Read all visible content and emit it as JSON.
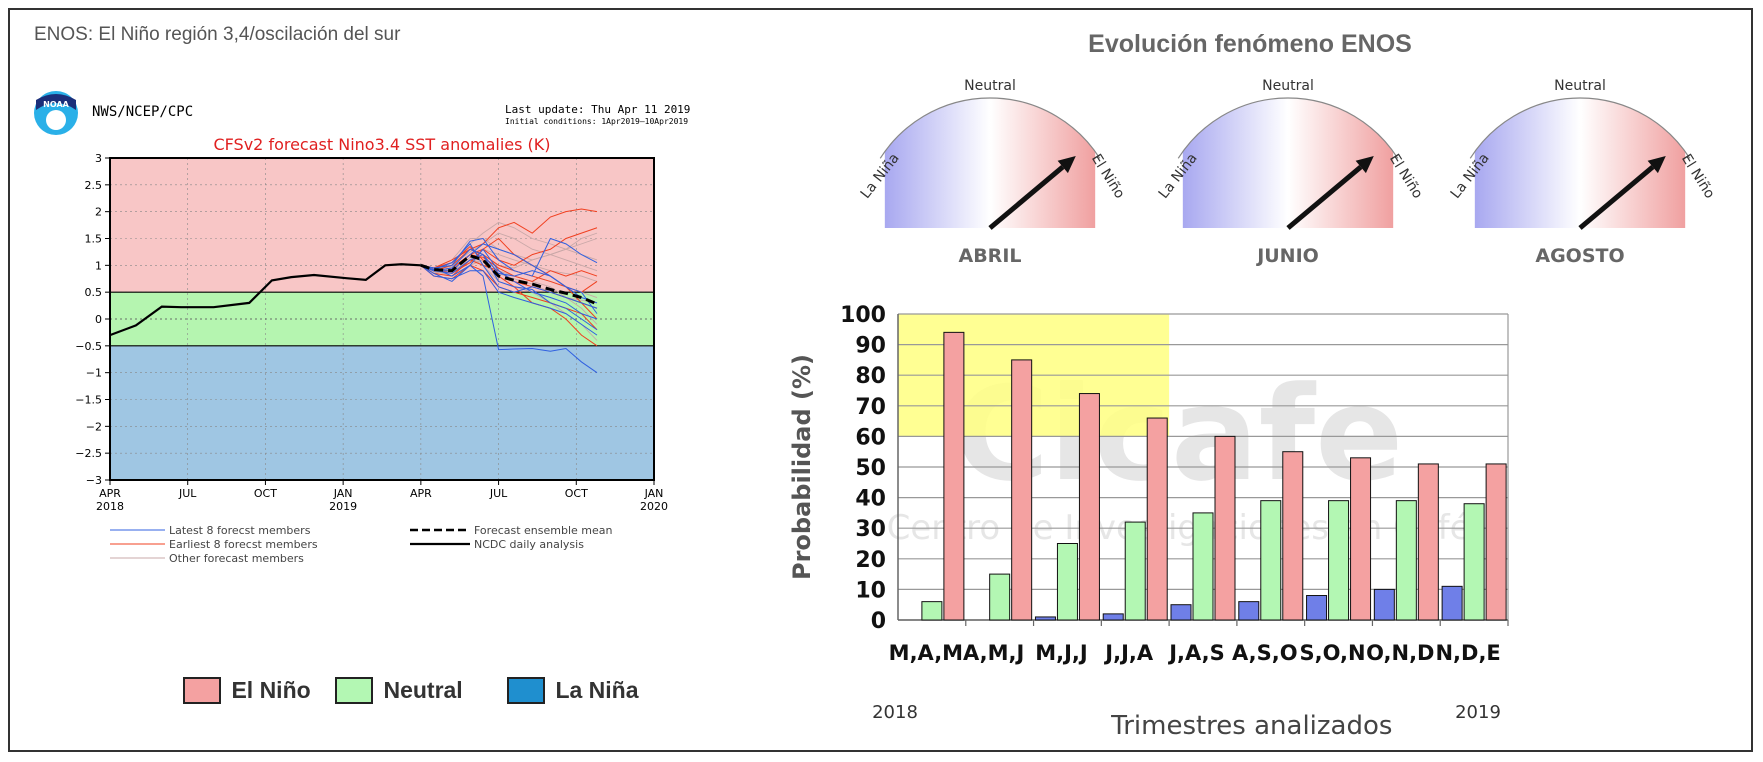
{
  "page": {
    "title": "ENOS: El Niño región 3,4/oscilación del sur"
  },
  "colors": {
    "el_nino": "#f4a1a1",
    "neutral": "#b3f7b3",
    "la_nina": "#1f8fcf",
    "el_nino_zone": "#f8c6c6",
    "neutral_zone": "#b5f5b0",
    "la_nina_zone": "#9fc6e3",
    "highlight": "#ffff80",
    "blue_bar": "#6f7fe8",
    "forecast_title": "#e02020"
  },
  "left_panel": {
    "org_label": "NWS/NCEP/CPC",
    "logo_text": "NOAA",
    "last_update": "Last update: Thu Apr 11 2019",
    "initial_conditions": "Initial conditions: 1Apr2019–10Apr2019",
    "legend_items": [
      {
        "label": "Latest 8 forecst members",
        "style": "blue"
      },
      {
        "label": "Earliest 8 forecst members",
        "style": "red"
      },
      {
        "label": "Other forecast members",
        "style": "gray"
      },
      {
        "label": "Forecast ensemble mean",
        "style": "dashed"
      },
      {
        "label": "NCDC daily analysis",
        "style": "solid"
      }
    ],
    "key_items": [
      {
        "label": "El Niño",
        "color": "#f4a1a1"
      },
      {
        "label": "Neutral",
        "color": "#b3f7b3"
      },
      {
        "label": "La Niña",
        "color": "#1f8fcf"
      }
    ]
  },
  "right_panel": {
    "title": "Evolución fenómeno ENOS",
    "gauges": [
      {
        "month": "ABRIL",
        "labels": {
          "left": "La Niña",
          "top": "Neutral",
          "right": "El Niño"
        },
        "needle_angle_deg": 40
      },
      {
        "month": "JUNIO",
        "labels": {
          "left": "La Niña",
          "top": "Neutral",
          "right": "El Niño"
        },
        "needle_angle_deg": 40
      },
      {
        "month": "AGOSTO",
        "labels": {
          "left": "La Niña",
          "top": "Neutral",
          "right": "El Niño"
        },
        "needle_angle_deg": 40
      }
    ],
    "watermark": {
      "logo": "Cicafe",
      "subtitle": "Centro de Investigaciones en Café"
    },
    "year_start": "2018",
    "year_end": "2019"
  },
  "chart_data": [
    {
      "type": "line",
      "title": "CFSv2 forecast Nino3.4 SST anomalies (K)",
      "xlabel": "",
      "ylabel": "",
      "ylim": [
        -3,
        3
      ],
      "y_ticks": [
        "3",
        "2.5",
        "2",
        "1.5",
        "1",
        "0.5",
        "0",
        "−0.5",
        "−1",
        "−1.5",
        "−2",
        "−2.5",
        "−3"
      ],
      "x_ticks": [
        {
          "label": "APR",
          "sub": "2018"
        },
        {
          "label": "JUL",
          "sub": ""
        },
        {
          "label": "OCT",
          "sub": ""
        },
        {
          "label": "JAN",
          "sub": "2019"
        },
        {
          "label": "APR",
          "sub": ""
        },
        {
          "label": "JUL",
          "sub": ""
        },
        {
          "label": "OCT",
          "sub": ""
        },
        {
          "label": "JAN",
          "sub": "2020"
        }
      ],
      "zones": [
        {
          "name": "El Niño",
          "from": 0.5,
          "to": 3
        },
        {
          "name": "Neutral",
          "from": -0.5,
          "to": 0.5
        },
        {
          "name": "La Niña",
          "from": -3,
          "to": -0.5
        }
      ],
      "grid": true,
      "series": [
        {
          "name": "NCDC daily analysis",
          "style": "solid",
          "x": [
            0,
            0.8,
            1.6,
            2.2,
            3.2,
            4.3,
            5.0,
            5.6,
            6.3,
            7.3,
            7.9,
            8.5,
            9.0,
            9.6
          ],
          "y": [
            -0.3,
            -0.12,
            0.23,
            0.22,
            0.22,
            0.3,
            0.72,
            0.78,
            0.82,
            0.76,
            0.73,
            1.0,
            1.02,
            1.0
          ]
        },
        {
          "name": "Forecast ensemble mean",
          "style": "dashed",
          "x": [
            9.0,
            9.6,
            10.3,
            11.0,
            11.5,
            12.0,
            12.6,
            13.3,
            14.0,
            14.6,
            15.2,
            15.8
          ],
          "y": [
            1.0,
            0.92,
            0.9,
            1.18,
            1.1,
            0.8,
            0.72,
            0.65,
            0.55,
            0.48,
            0.4,
            0.28
          ]
        },
        {
          "name": "Latest 8 forecst members",
          "style": "blue",
          "members": [
            [
              1.0,
              0.9,
              0.9,
              1.2,
              1.4,
              1.3,
              1.2,
              1.0,
              0.8,
              0.6,
              0.5,
              0.1
            ],
            [
              1.0,
              0.95,
              1.0,
              1.45,
              1.5,
              1.1,
              0.9,
              0.8,
              1.5,
              1.4,
              1.2,
              1.05
            ],
            [
              1.0,
              0.85,
              0.7,
              1.0,
              0.8,
              -0.57,
              -0.56,
              -0.55,
              -0.6,
              -0.55,
              -0.8,
              -1.0
            ],
            [
              1.0,
              0.9,
              0.85,
              1.1,
              1.2,
              0.7,
              0.6,
              0.55,
              0.3,
              0.2,
              0.0,
              -0.2
            ],
            [
              1.0,
              0.95,
              0.8,
              1.0,
              1.3,
              0.9,
              0.7,
              0.5,
              0.4,
              0.3,
              0.1,
              0.0
            ],
            [
              1.0,
              0.9,
              0.95,
              1.3,
              1.2,
              0.85,
              0.8,
              0.9,
              0.8,
              0.6,
              0.4,
              0.3
            ],
            [
              1.0,
              0.8,
              0.75,
              0.9,
              0.9,
              0.5,
              0.4,
              0.3,
              0.2,
              0.1,
              -0.1,
              -0.3
            ],
            [
              1.0,
              0.92,
              1.05,
              1.4,
              1.0,
              0.6,
              0.5,
              0.6,
              0.5,
              0.4,
              0.3,
              0.2
            ]
          ]
        },
        {
          "name": "Earliest 8 forecst members",
          "style": "red",
          "members": [
            [
              1.0,
              0.95,
              1.1,
              1.3,
              1.4,
              1.7,
              1.8,
              1.6,
              1.9,
              2.0,
              2.05,
              2.0
            ],
            [
              1.0,
              0.9,
              0.9,
              1.2,
              1.3,
              1.1,
              1.0,
              1.2,
              1.3,
              1.5,
              1.6,
              1.7
            ],
            [
              1.0,
              0.85,
              0.8,
              1.1,
              1.0,
              0.9,
              0.7,
              0.6,
              0.5,
              0.4,
              0.3,
              0.2
            ],
            [
              1.0,
              0.9,
              1.0,
              1.3,
              1.2,
              1.0,
              0.9,
              0.8,
              0.7,
              0.6,
              0.5,
              0.7
            ],
            [
              1.0,
              0.8,
              0.75,
              1.0,
              0.9,
              0.6,
              0.5,
              0.4,
              0.3,
              0.2,
              0.1,
              -0.2
            ],
            [
              1.0,
              0.95,
              1.05,
              1.35,
              1.1,
              0.8,
              0.6,
              0.3,
              0.2,
              0.0,
              -0.3,
              -0.5
            ],
            [
              1.0,
              0.9,
              0.95,
              1.2,
              1.15,
              0.95,
              0.8,
              0.7,
              0.9,
              0.8,
              0.9,
              0.8
            ],
            [
              1.0,
              0.92,
              0.85,
              1.05,
              1.3,
              1.5,
              1.2,
              1.0,
              0.8,
              0.6,
              0.3,
              0.0
            ]
          ]
        },
        {
          "name": "Other forecast members",
          "style": "gray",
          "members": [
            [
              1.0,
              0.92,
              1.0,
              1.4,
              1.6,
              1.8,
              1.7,
              1.5,
              1.4,
              1.3,
              1.2,
              1.1
            ],
            [
              1.0,
              0.95,
              1.1,
              1.5,
              1.5,
              1.3,
              1.2,
              1.1,
              1.2,
              1.3,
              1.4,
              1.5
            ],
            [
              1.0,
              0.9,
              0.95,
              1.2,
              1.3,
              1.2,
              1.1,
              1.0,
              0.9,
              0.85,
              0.8,
              0.7
            ],
            [
              1.0,
              0.85,
              0.9,
              1.1,
              1.0,
              0.85,
              0.75,
              0.65,
              0.5,
              0.4,
              0.35,
              0.3
            ],
            [
              1.0,
              0.9,
              0.8,
              1.0,
              1.1,
              1.0,
              0.9,
              0.8,
              0.7,
              0.6,
              0.5,
              0.4
            ],
            [
              1.0,
              0.95,
              1.0,
              1.25,
              1.4,
              1.6,
              1.5,
              1.3,
              1.2,
              1.1,
              1.0,
              0.9
            ],
            [
              1.0,
              0.88,
              0.85,
              1.15,
              1.0,
              0.7,
              0.6,
              0.5,
              0.3,
              0.1,
              -0.1,
              -0.4
            ],
            [
              1.0,
              0.93,
              0.98,
              1.3,
              1.2,
              1.0,
              0.95,
              1.1,
              1.2,
              1.3,
              1.5,
              1.6
            ],
            [
              1.0,
              0.9,
              0.92,
              1.05,
              1.1,
              0.9,
              0.8,
              0.7,
              0.6,
              0.4,
              0.2,
              -0.1
            ]
          ]
        }
      ]
    },
    {
      "type": "bar",
      "title": "",
      "xlabel": "Trimestres  analizados",
      "ylabel": "Probabilidad (%)",
      "ylim": [
        0,
        100
      ],
      "y_ticks": [
        0,
        10,
        20,
        30,
        40,
        50,
        60,
        70,
        80,
        90,
        100
      ],
      "categories": [
        "M,A,M",
        "A,M,J",
        "M,J,J",
        "J,J,A",
        "J,A,S",
        "A,S,O",
        "S,O,N",
        "O,N,D",
        "N,D,E"
      ],
      "series": [
        {
          "color_key": "blue_bar",
          "values": [
            0,
            0,
            1,
            2,
            5,
            6,
            8,
            10,
            11
          ]
        },
        {
          "color_key": "neutral",
          "values": [
            6,
            15,
            25,
            32,
            35,
            39,
            39,
            39,
            38
          ]
        },
        {
          "color_key": "el_nino",
          "values": [
            94,
            85,
            74,
            66,
            60,
            55,
            53,
            51,
            51
          ]
        }
      ],
      "highlight": {
        "from_category": 0,
        "to_category": 3,
        "y_from": 60,
        "y_to": 100
      },
      "grid": true
    }
  ]
}
